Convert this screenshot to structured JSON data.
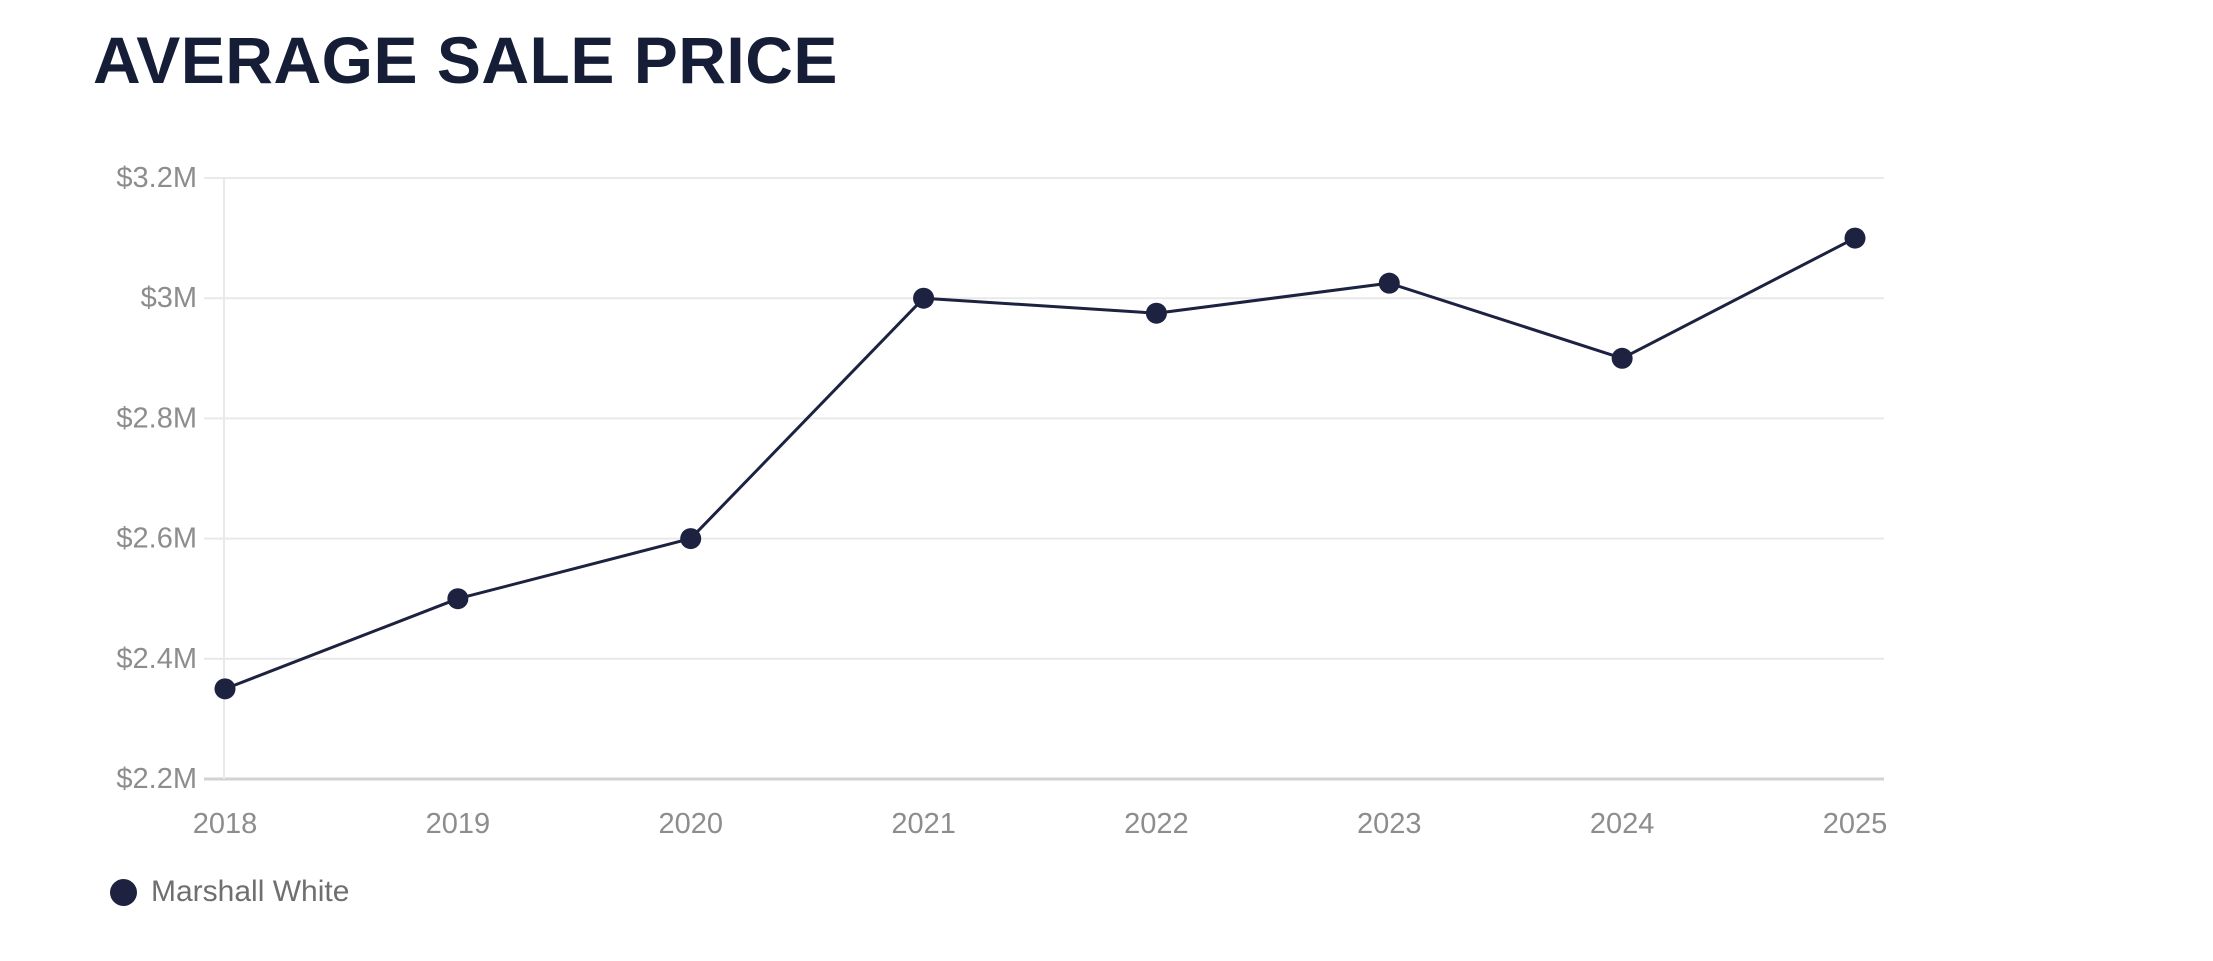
{
  "page": {
    "background": "#ffffff"
  },
  "colors": {
    "series": "#1c2240",
    "title": "#151e36",
    "axis_label": "#8d8d8d",
    "gridline": "#e9e9e9",
    "axis_line": "#d2d2d2",
    "legend_text": "#6f6f6f",
    "background": "#ffffff"
  },
  "chart_data": {
    "type": "line",
    "title": "AVERAGE SALE PRICE",
    "xlabel": "",
    "ylabel": "",
    "categories": [
      "2018",
      "2019",
      "2020",
      "2021",
      "2022",
      "2023",
      "2024",
      "2025"
    ],
    "series": [
      {
        "name": "Marshall White",
        "values": [
          2.35,
          2.5,
          2.6,
          3.0,
          2.975,
          3.025,
          2.9,
          3.1
        ]
      }
    ],
    "ylim": [
      2.2,
      3.2
    ],
    "yticks": [
      {
        "label": "$3.2M",
        "value": 3.2
      },
      {
        "label": "$3M",
        "value": 3.0
      },
      {
        "label": "$2.8M",
        "value": 2.8
      },
      {
        "label": "$2.6M",
        "value": 2.6
      },
      {
        "label": "$2.4M",
        "value": 2.4
      },
      {
        "label": "$2.2M",
        "value": 2.2
      }
    ],
    "grid": true,
    "legend": {
      "position": "bottom-left",
      "label": "Marshall White"
    }
  }
}
